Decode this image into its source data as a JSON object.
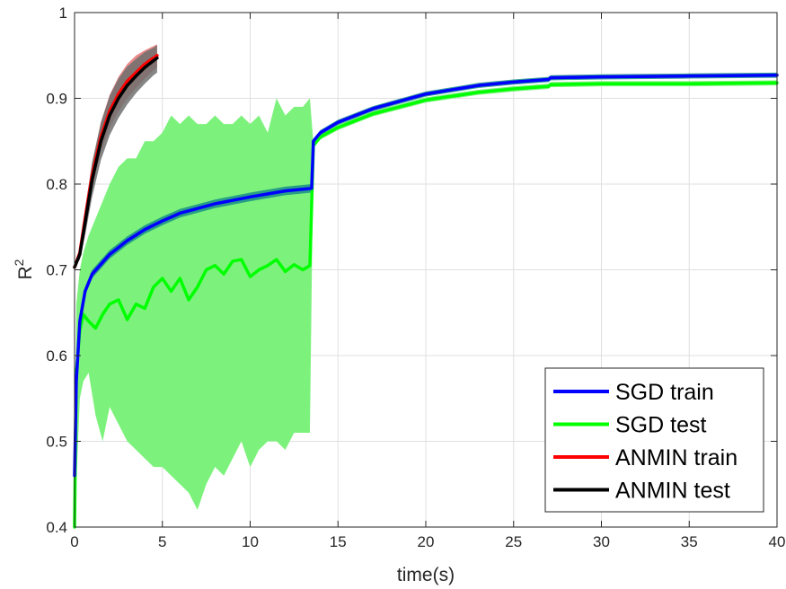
{
  "chart_data": {
    "type": "line",
    "xlabel": "time(s)",
    "ylabel": {
      "base": "R",
      "superscript": "2"
    },
    "xlim": [
      0,
      40
    ],
    "ylim": [
      0.4,
      1.0
    ],
    "xticks": [
      0,
      5,
      10,
      15,
      20,
      25,
      30,
      35,
      40
    ],
    "yticks": [
      0.4,
      0.5,
      0.6,
      0.7,
      0.8,
      0.9,
      1.0
    ],
    "xtick_labels": [
      "0",
      "5",
      "10",
      "15",
      "20",
      "25",
      "30",
      "35",
      "40"
    ],
    "ytick_labels": [
      "0.4",
      "0.5",
      "0.6",
      "0.7",
      "0.8",
      "0.9",
      "1"
    ],
    "grid": true,
    "legend_position": "bottom-right",
    "series": [
      {
        "name": "SGD train",
        "color": "#0000ff",
        "band_color": "#1a8f8a",
        "x": [
          0,
          0.1,
          0.3,
          0.6,
          1,
          2,
          3,
          4,
          5,
          6,
          8,
          10,
          12,
          13.5,
          13.6,
          14,
          15,
          17,
          20,
          23,
          25,
          27,
          27.1,
          30,
          35,
          40
        ],
        "y": [
          0.46,
          0.57,
          0.64,
          0.675,
          0.695,
          0.718,
          0.734,
          0.747,
          0.757,
          0.766,
          0.777,
          0.785,
          0.792,
          0.795,
          0.85,
          0.86,
          0.872,
          0.888,
          0.905,
          0.915,
          0.919,
          0.922,
          0.924,
          0.925,
          0.926,
          0.927
        ],
        "band_lower": [
          0.46,
          0.565,
          0.635,
          0.67,
          0.69,
          0.713,
          0.729,
          0.742,
          0.752,
          0.761,
          0.772,
          0.78,
          0.787,
          0.79,
          0.847,
          0.857,
          0.869,
          0.885,
          0.902,
          0.912,
          0.916,
          0.919,
          0.921,
          0.922,
          0.923,
          0.924
        ],
        "band_upper": [
          0.46,
          0.575,
          0.645,
          0.68,
          0.7,
          0.723,
          0.739,
          0.752,
          0.762,
          0.771,
          0.782,
          0.79,
          0.797,
          0.8,
          0.853,
          0.863,
          0.875,
          0.891,
          0.908,
          0.918,
          0.922,
          0.925,
          0.927,
          0.928,
          0.929,
          0.93
        ]
      },
      {
        "name": "SGD test",
        "color": "#00ff00",
        "band_color": "#7cf27c",
        "x": [
          0,
          0.1,
          0.3,
          0.5,
          0.8,
          1.2,
          1.6,
          2,
          2.5,
          3,
          3.5,
          4,
          4.5,
          5,
          5.5,
          6,
          6.5,
          7,
          7.5,
          8,
          8.5,
          9,
          9.5,
          10,
          10.5,
          11,
          11.5,
          12,
          12.5,
          13,
          13.4,
          13.6,
          14,
          15,
          17,
          20,
          23,
          25,
          27,
          27.1,
          30,
          35,
          40
        ],
        "y": [
          0.4,
          0.58,
          0.63,
          0.648,
          0.64,
          0.632,
          0.648,
          0.66,
          0.665,
          0.642,
          0.66,
          0.655,
          0.68,
          0.69,
          0.675,
          0.69,
          0.665,
          0.68,
          0.7,
          0.705,
          0.695,
          0.71,
          0.712,
          0.692,
          0.7,
          0.705,
          0.712,
          0.698,
          0.706,
          0.7,
          0.705,
          0.845,
          0.855,
          0.866,
          0.882,
          0.898,
          0.907,
          0.911,
          0.914,
          0.916,
          0.917,
          0.917,
          0.918
        ],
        "band_lower": [
          0.4,
          0.45,
          0.55,
          0.57,
          0.58,
          0.53,
          0.5,
          0.54,
          0.52,
          0.5,
          0.49,
          0.48,
          0.47,
          0.47,
          0.46,
          0.45,
          0.44,
          0.42,
          0.45,
          0.47,
          0.46,
          0.48,
          0.5,
          0.47,
          0.49,
          0.5,
          0.5,
          0.49,
          0.51,
          0.51,
          0.51,
          0.842,
          0.852,
          0.863,
          0.879,
          0.895,
          0.904,
          0.908,
          0.911,
          0.913,
          0.914,
          0.914,
          0.915
        ],
        "band_upper": [
          0.4,
          0.66,
          0.7,
          0.72,
          0.74,
          0.76,
          0.78,
          0.8,
          0.82,
          0.83,
          0.83,
          0.85,
          0.85,
          0.86,
          0.88,
          0.87,
          0.88,
          0.87,
          0.87,
          0.88,
          0.87,
          0.87,
          0.88,
          0.87,
          0.88,
          0.86,
          0.9,
          0.88,
          0.89,
          0.89,
          0.9,
          0.848,
          0.858,
          0.869,
          0.885,
          0.901,
          0.91,
          0.914,
          0.917,
          0.919,
          0.92,
          0.92,
          0.921
        ]
      },
      {
        "name": "ANMIN train",
        "color": "#ff0000",
        "band_color": "#e87474",
        "x": [
          0,
          0.3,
          0.6,
          1,
          1.5,
          2,
          2.5,
          3,
          3.5,
          4,
          4.5,
          4.7
        ],
        "y": [
          0.703,
          0.72,
          0.76,
          0.81,
          0.855,
          0.885,
          0.905,
          0.92,
          0.93,
          0.94,
          0.947,
          0.95
        ],
        "band_lower": [
          0.703,
          0.715,
          0.748,
          0.795,
          0.838,
          0.866,
          0.885,
          0.9,
          0.912,
          0.923,
          0.933,
          0.936
        ],
        "band_upper": [
          0.703,
          0.725,
          0.772,
          0.825,
          0.872,
          0.904,
          0.925,
          0.94,
          0.95,
          0.956,
          0.961,
          0.963
        ]
      },
      {
        "name": "ANMIN test",
        "color": "#000000",
        "band_color": "#707070",
        "x": [
          0,
          0.3,
          0.6,
          1,
          1.5,
          2,
          2.5,
          3,
          3.5,
          4,
          4.5,
          4.7
        ],
        "y": [
          0.703,
          0.718,
          0.755,
          0.805,
          0.85,
          0.88,
          0.9,
          0.915,
          0.926,
          0.936,
          0.944,
          0.947
        ],
        "band_lower": [
          0.703,
          0.712,
          0.74,
          0.785,
          0.828,
          0.857,
          0.877,
          0.893,
          0.906,
          0.917,
          0.927,
          0.93
        ],
        "band_upper": [
          0.703,
          0.724,
          0.77,
          0.825,
          0.872,
          0.903,
          0.923,
          0.937,
          0.946,
          0.954,
          0.959,
          0.962
        ]
      }
    ]
  }
}
